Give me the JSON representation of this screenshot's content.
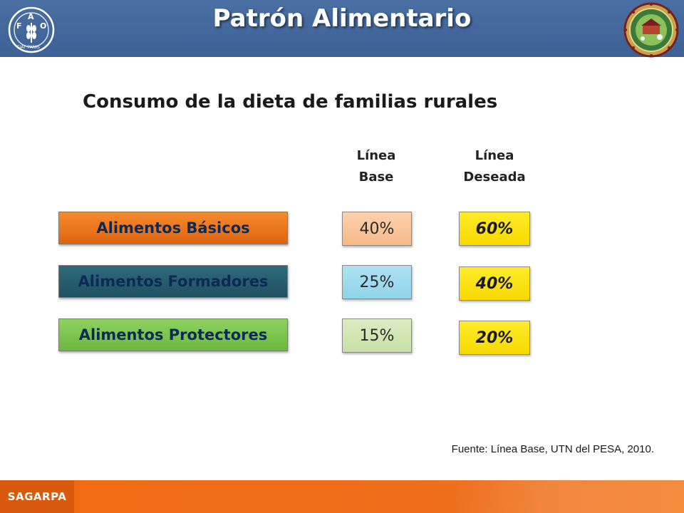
{
  "header": {
    "title": "Patrón Alimentario",
    "left_logo": {
      "icon": "fao-logo",
      "text": "FAO FIAT PANIS"
    },
    "right_logo": {
      "icon": "circular-seal-logo"
    }
  },
  "slide": {
    "subtitle": "Consumo de la dieta de familias rurales",
    "columns": {
      "base": [
        "Línea",
        "Base"
      ],
      "deseada": [
        "Línea",
        "Deseada"
      ]
    },
    "rows": [
      {
        "category": "Alimentos Básicos",
        "base": "40%",
        "deseada": "60%"
      },
      {
        "category": "Alimentos Formadores",
        "base": "25%",
        "deseada": "40%"
      },
      {
        "category": "Alimentos Protectores",
        "base": "15%",
        "deseada": "20%"
      }
    ],
    "source": "Fuente: Línea Base, UTN del PESA, 2010."
  },
  "footer": {
    "brand": "SAGARPA"
  },
  "colors": {
    "header_bg": "#3d6196",
    "basicos": "#e0640e",
    "formadores": "#1f5060",
    "protectores": "#6db83e",
    "deseada": "#f7d800",
    "footer_bg": "#f06a12"
  }
}
